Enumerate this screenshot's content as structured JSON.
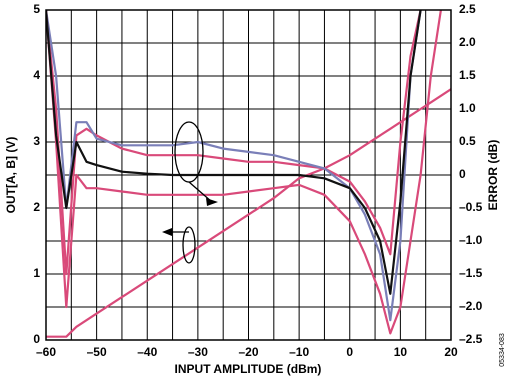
{
  "chart_data": {
    "type": "line",
    "xlabel": "INPUT AMPLITUDE (dBm)",
    "ylabel": "OUT[A, B] (V)",
    "y2label": "ERROR (dB)",
    "figure_id": "05334-083",
    "x": [
      -60,
      -58,
      -56,
      -54,
      -52,
      -50,
      -45,
      -40,
      -35,
      -30,
      -25,
      -20,
      -15,
      -10,
      -5,
      0,
      3,
      6,
      8,
      10,
      12,
      14,
      16,
      18,
      20
    ],
    "series": [
      {
        "color": "#d94a7a",
        "values": [
          0.05,
          0.05,
          0.05,
          0.2,
          0.3,
          0.4,
          0.65,
          0.9,
          1.15,
          1.4,
          1.65,
          1.9,
          2.15,
          2.45,
          2.6,
          2.8,
          2.95,
          3.1,
          3.2,
          3.3,
          3.4,
          3.5,
          3.6,
          3.7,
          3.8
        ]
      },
      {
        "color": "#d94a7a",
        "axis": "y2",
        "values": [
          2.5,
          1.0,
          -1.5,
          0.6,
          0.7,
          0.6,
          0.4,
          0.3,
          0.3,
          0.3,
          0.25,
          0.2,
          0.2,
          0.15,
          0.1,
          -0.1,
          -0.4,
          -0.8,
          -1.2,
          0.5,
          1.8,
          2.5,
          null,
          null,
          null
        ]
      },
      {
        "color": "#7a7fb8",
        "axis": "y2",
        "values": [
          2.5,
          1.5,
          -0.5,
          0.8,
          0.8,
          0.55,
          0.45,
          0.45,
          0.45,
          0.5,
          0.4,
          0.35,
          0.3,
          0.2,
          0.1,
          -0.2,
          -0.6,
          -1.2,
          -2.2,
          -1.0,
          1.5,
          2.5,
          null,
          null,
          null
        ]
      },
      {
        "color": "#d94a7a",
        "axis": "y2",
        "values": [
          2.5,
          0.5,
          -2.0,
          0.0,
          -0.2,
          -0.2,
          -0.25,
          -0.3,
          -0.3,
          -0.3,
          -0.3,
          -0.25,
          -0.2,
          -0.15,
          -0.3,
          -0.7,
          -1.2,
          -1.8,
          -2.4,
          -2.0,
          -1.0,
          0,
          1.5,
          2.5,
          null
        ]
      },
      {
        "color": "#111111",
        "axis": "y2",
        "values": [
          2.5,
          0.6,
          -0.5,
          0.5,
          0.2,
          0.15,
          0.05,
          0.02,
          0,
          0,
          0,
          0,
          0,
          0,
          -0.05,
          -0.2,
          -0.5,
          -1.0,
          -1.8,
          -0.4,
          1.5,
          2.5,
          null,
          null,
          null
        ]
      }
    ],
    "xlim": [
      -60,
      20
    ],
    "xticks": [
      {
        "value": -60,
        "label": "–60"
      },
      {
        "value": -50,
        "label": "–50"
      },
      {
        "value": -40,
        "label": "–40"
      },
      {
        "value": -30,
        "label": "–30"
      },
      {
        "value": -20,
        "label": "–20"
      },
      {
        "value": -10,
        "label": "–10"
      },
      0,
      10,
      20
    ],
    "ylim": [
      0,
      5
    ],
    "yticks": [
      0,
      1,
      2,
      3,
      4,
      5
    ],
    "y2lim": [
      -2.5,
      2.5
    ],
    "y2ticks": [
      {
        "value": -2.5,
        "label": "–2.5"
      },
      {
        "value": -2.0,
        "label": "–2.0"
      },
      {
        "value": -1.5,
        "label": "–1.5"
      },
      {
        "value": -1.0,
        "label": "–1.0"
      },
      {
        "value": -0.5,
        "label": "–0.5"
      },
      0,
      {
        "value": 0.5,
        "label": "0.5"
      },
      {
        "value": 1.0,
        "label": "1.0"
      },
      {
        "value": 1.5,
        "label": "1.5"
      },
      {
        "value": 2.0,
        "label": "2.0"
      },
      {
        "value": 2.5,
        "label": "2.5"
      }
    ],
    "grid": true,
    "minor_grid": true
  }
}
